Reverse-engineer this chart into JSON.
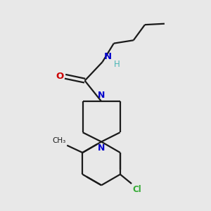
{
  "bg_color": "#e8e8e8",
  "bond_color": "#1a1a1a",
  "N_color": "#0000cc",
  "O_color": "#cc0000",
  "Cl_color": "#33aa33",
  "H_color": "#4ab5b5",
  "line_width": 1.6,
  "figsize": [
    3.0,
    3.0
  ],
  "dpi": 100,
  "xlim": [
    0,
    10
  ],
  "ylim": [
    0,
    10
  ]
}
